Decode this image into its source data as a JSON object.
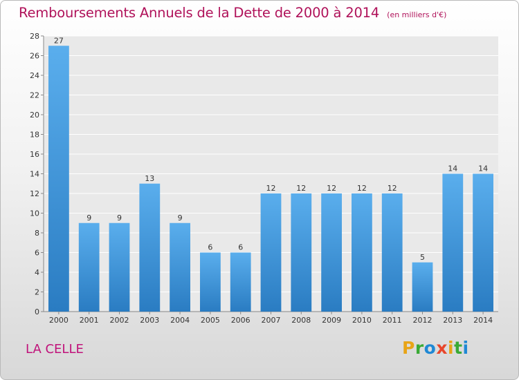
{
  "chart_data": {
    "type": "bar",
    "title": "Remboursements Annuels de la Dette de 2000 à 2014",
    "subtitle": "(en milliers d'€)",
    "categories": [
      "2000",
      "2001",
      "2002",
      "2003",
      "2004",
      "2005",
      "2006",
      "2007",
      "2008",
      "2009",
      "2010",
      "2011",
      "2012",
      "2013",
      "2014"
    ],
    "values": [
      27,
      9,
      9,
      13,
      9,
      6,
      6,
      12,
      12,
      12,
      12,
      12,
      5,
      14,
      14
    ],
    "ylim": [
      0,
      28
    ],
    "yticks": [
      0,
      2,
      4,
      6,
      8,
      10,
      12,
      14,
      16,
      18,
      20,
      22,
      24,
      26,
      28
    ],
    "xlabel": "",
    "ylabel": "",
    "grid": true,
    "bar_color": "#3a8fd8"
  },
  "footer": {
    "commune": "LA CELLE",
    "logo_letters": [
      "P",
      "r",
      "o",
      "x",
      "i",
      "t",
      "i"
    ],
    "logo_colors": [
      "#e8a417",
      "#3aaa35",
      "#1f88d4",
      "#e8462b",
      "#e8a417",
      "#3aaa35",
      "#1f88d4"
    ]
  }
}
